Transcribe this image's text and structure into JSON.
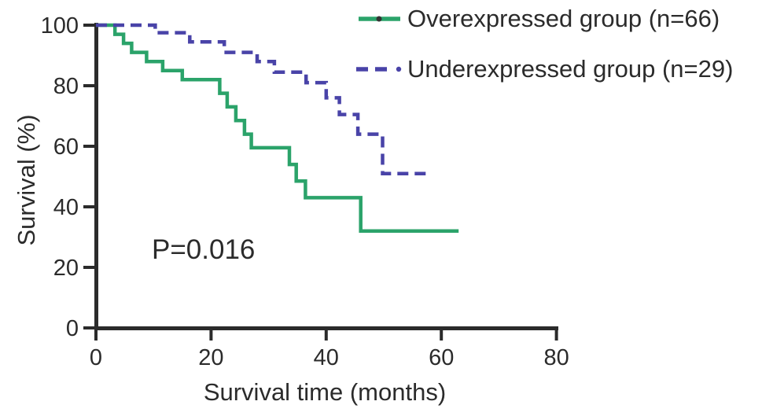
{
  "figure": {
    "description": "Kaplan-Meier survival curves comparing overexpressed and underexpressed groups",
    "background_color": "#ffffff",
    "axis_color": "#2b2b2b",
    "p_value": "P=0.016"
  },
  "chart_data": {
    "type": "line",
    "subtype": "kaplan-meier-step",
    "title": "",
    "xlabel": "Survival time (months)",
    "ylabel": "Survival (%)",
    "xlim": [
      0,
      80
    ],
    "ylim": [
      0,
      100
    ],
    "x_ticks": [
      0,
      20,
      40,
      60,
      80
    ],
    "y_ticks": [
      0,
      20,
      40,
      60,
      80,
      100
    ],
    "x_tick_labels": [
      "0",
      "20",
      "40",
      "60",
      "80"
    ],
    "y_tick_labels": [
      "0",
      "20",
      "40",
      "60",
      "80",
      "100"
    ],
    "grid": false,
    "legend_position": "top-right",
    "annotations": [
      {
        "text": "P=0.016",
        "x_months": 10,
        "y_percent": 25
      }
    ],
    "series": [
      {
        "name": "Overexpressed group (n=66)",
        "n": 66,
        "color": "#2ba36a",
        "style": "solid",
        "legend_dot_color": "#333333",
        "steps_time_percent": [
          [
            0,
            100
          ],
          [
            3.3,
            97
          ],
          [
            4.8,
            94
          ],
          [
            6.2,
            91
          ],
          [
            8.8,
            88
          ],
          [
            11.6,
            85
          ],
          [
            15,
            82
          ],
          [
            21.5,
            77.5
          ],
          [
            22.8,
            73
          ],
          [
            24.3,
            68.5
          ],
          [
            25.8,
            64
          ],
          [
            27,
            59.5
          ],
          [
            33.6,
            54
          ],
          [
            34.8,
            48.5
          ],
          [
            36.4,
            43
          ],
          [
            46,
            32
          ],
          [
            63,
            32
          ]
        ]
      },
      {
        "name": "Underexpressed group (n=29)",
        "n": 29,
        "color": "#4943a8",
        "style": "dashed",
        "legend_dot_color": "#4943a8",
        "steps_time_percent": [
          [
            0,
            100
          ],
          [
            10.3,
            97.5
          ],
          [
            16.3,
            94.5
          ],
          [
            22.3,
            91
          ],
          [
            28,
            88
          ],
          [
            31,
            84.5
          ],
          [
            36.5,
            81
          ],
          [
            40,
            76
          ],
          [
            42.3,
            70.5
          ],
          [
            45.5,
            64
          ],
          [
            49.8,
            51
          ],
          [
            57.8,
            51
          ]
        ]
      }
    ]
  }
}
